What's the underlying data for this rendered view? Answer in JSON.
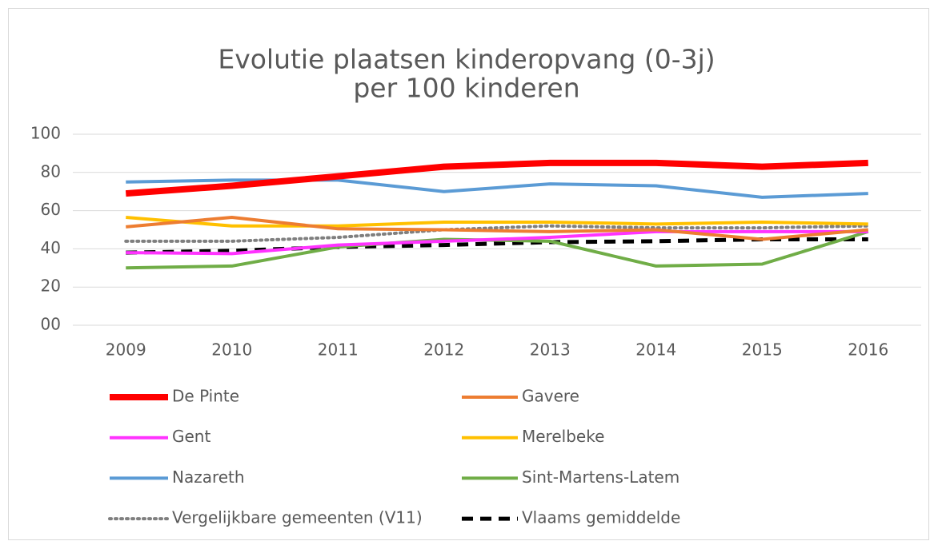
{
  "chart_data": {
    "type": "line",
    "title": "Evolutie plaatsen kinderopvang (0-3j)",
    "subtitle": "per 100 kinderen",
    "x": [
      "2009",
      "2010",
      "2011",
      "2012",
      "2013",
      "2014",
      "2015",
      "2016"
    ],
    "ylim": [
      0,
      100
    ],
    "yticks": [
      {
        "value": 0,
        "label": "00"
      },
      20,
      40,
      60,
      80,
      100
    ],
    "grid": true,
    "legend": "bottom",
    "series": [
      {
        "name": "De Pinte",
        "color": "#ff0000",
        "width": 8,
        "dash": "solid",
        "values": [
          69,
          73,
          78,
          83,
          85,
          85,
          83,
          85
        ]
      },
      {
        "name": "Gavere",
        "color": "#ed7d31",
        "width": 4,
        "dash": "solid",
        "values": [
          51.5,
          56.5,
          50.5,
          50,
          49,
          50,
          45,
          50
        ]
      },
      {
        "name": "Gent",
        "color": "#ff33ff",
        "width": 4,
        "dash": "solid",
        "values": [
          38,
          37.5,
          42,
          44,
          46,
          49,
          49,
          49
        ]
      },
      {
        "name": "Merelbeke",
        "color": "#ffc000",
        "width": 4,
        "dash": "solid",
        "values": [
          56.5,
          52,
          52,
          54,
          54,
          53,
          54,
          53
        ]
      },
      {
        "name": "Nazareth",
        "color": "#5b9bd5",
        "width": 4,
        "dash": "solid",
        "values": [
          75,
          76,
          76,
          70,
          74,
          73,
          67,
          69
        ]
      },
      {
        "name": "Sint-Martens-Latem",
        "color": "#70ad47",
        "width": 4,
        "dash": "solid",
        "values": [
          30,
          31,
          41,
          45,
          44,
          31,
          32,
          49
        ]
      },
      {
        "name": "Vergelijkbare gemeenten (V11)",
        "color": "#7f7f7f",
        "width": 4,
        "dash": "dot",
        "values": [
          44,
          44,
          46,
          50,
          52,
          51,
          51,
          52
        ]
      },
      {
        "name": "Vlaams gemiddelde",
        "color": "#000000",
        "width": 5,
        "dash": "dash",
        "values": [
          38,
          39,
          41,
          42,
          43.5,
          44,
          45,
          45
        ]
      }
    ]
  }
}
